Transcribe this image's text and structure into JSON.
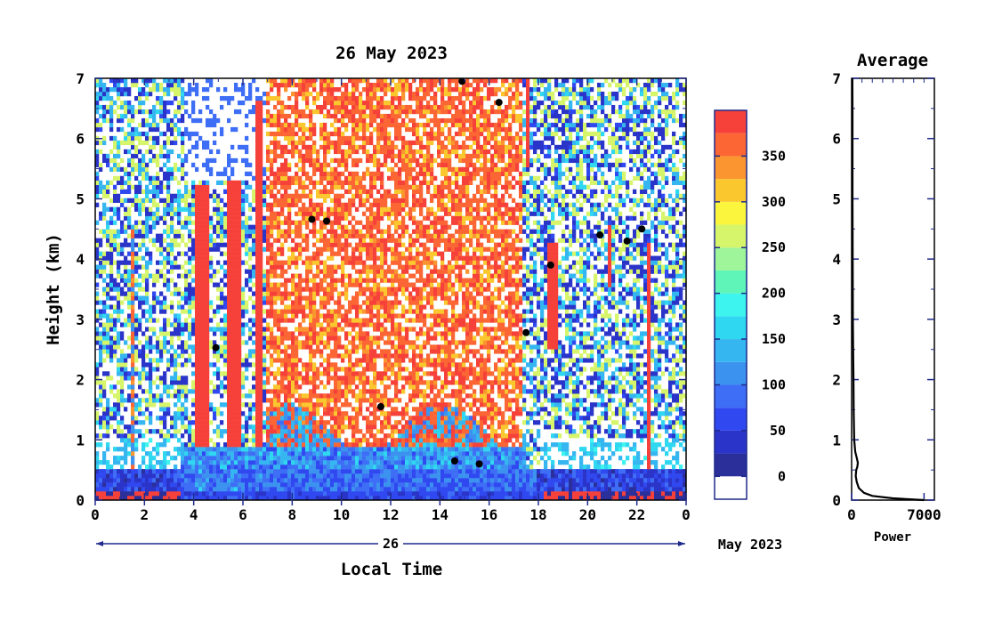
{
  "chart_data": [
    {
      "type": "heatmap",
      "title": "26 May 2023",
      "xlabel": "Local Time",
      "ylabel": "Height (km)",
      "xlim": [
        0,
        24
      ],
      "ylim": [
        0,
        7
      ],
      "x_ticks": [
        "0",
        "2",
        "4",
        "6",
        "8",
        "10",
        "12",
        "14",
        "16",
        "18",
        "20",
        "22",
        "0"
      ],
      "y_ticks": [
        "0",
        "1",
        "2",
        "3",
        "4",
        "5",
        "6",
        "7"
      ],
      "date_bar": {
        "day": "26",
        "month_year": "May 2023"
      },
      "colorbar": {
        "ticks": [
          "0",
          "50",
          "100",
          "150",
          "200",
          "250",
          "300",
          "350"
        ],
        "levels": [
          {
            "min": -25,
            "max": 0,
            "color": "#ffffff"
          },
          {
            "min": 0,
            "max": 25,
            "color": "#2b2f9a"
          },
          {
            "min": 25,
            "max": 50,
            "color": "#2b34c8"
          },
          {
            "min": 50,
            "max": 75,
            "color": "#3048f0"
          },
          {
            "min": 75,
            "max": 100,
            "color": "#3d6ef5"
          },
          {
            "min": 100,
            "max": 125,
            "color": "#3c93ef"
          },
          {
            "min": 125,
            "max": 150,
            "color": "#35b6f0"
          },
          {
            "min": 150,
            "max": 175,
            "color": "#2fd8f0"
          },
          {
            "min": 175,
            "max": 200,
            "color": "#3ef4ee"
          },
          {
            "min": 200,
            "max": 225,
            "color": "#5ff5b8"
          },
          {
            "min": 225,
            "max": 250,
            "color": "#9ef59a"
          },
          {
            "min": 250,
            "max": 275,
            "color": "#d7f56a"
          },
          {
            "min": 275,
            "max": 300,
            "color": "#fbf53e"
          },
          {
            "min": 300,
            "max": 325,
            "color": "#fbc72f"
          },
          {
            "min": 325,
            "max": 350,
            "color": "#fb9530"
          },
          {
            "min": 350,
            "max": 375,
            "color": "#fb6634"
          },
          {
            "min": 375,
            "max": 400,
            "color": "#f6413a"
          }
        ]
      },
      "regions": [
        {
          "t0": 0.0,
          "t1": 3.4,
          "note": "mostly blue/white scattered noise, red near surface"
        },
        {
          "t0": 4.1,
          "t1": 4.6,
          "value": 390
        },
        {
          "t0": 5.4,
          "t1": 6.0,
          "value": 390
        },
        {
          "t0": 6.5,
          "t1": 6.8,
          "value": 390
        },
        {
          "t0": 7.0,
          "t1": 17.4,
          "value": 360,
          "note": "red dominated aloft"
        },
        {
          "t0": 17.4,
          "t1": 24.0,
          "note": "blue dominated aloft, scattered features 2.5-4.6 km"
        }
      ]
    },
    {
      "type": "line",
      "title": "Average",
      "xlabel": "Power",
      "ylabel": "",
      "xlim": [
        0,
        8000
      ],
      "ylim": [
        0,
        7
      ],
      "x_ticks": [
        "0",
        "7000"
      ],
      "y_ticks": [
        "0",
        "1",
        "2",
        "3",
        "4",
        "5",
        "6",
        "7"
      ],
      "x": [
        7000,
        4000,
        2000,
        1200,
        700,
        500,
        400,
        450,
        550,
        600,
        500,
        350,
        250,
        200,
        180,
        150,
        120,
        110,
        100,
        95,
        90,
        90,
        85,
        85,
        80,
        80
      ],
      "y": [
        0.0,
        0.03,
        0.07,
        0.12,
        0.2,
        0.3,
        0.4,
        0.5,
        0.55,
        0.62,
        0.7,
        0.8,
        1.0,
        1.5,
        2.0,
        2.5,
        3.0,
        3.5,
        4.0,
        4.5,
        5.0,
        5.5,
        6.0,
        6.5,
        6.9,
        7.0
      ]
    }
  ]
}
